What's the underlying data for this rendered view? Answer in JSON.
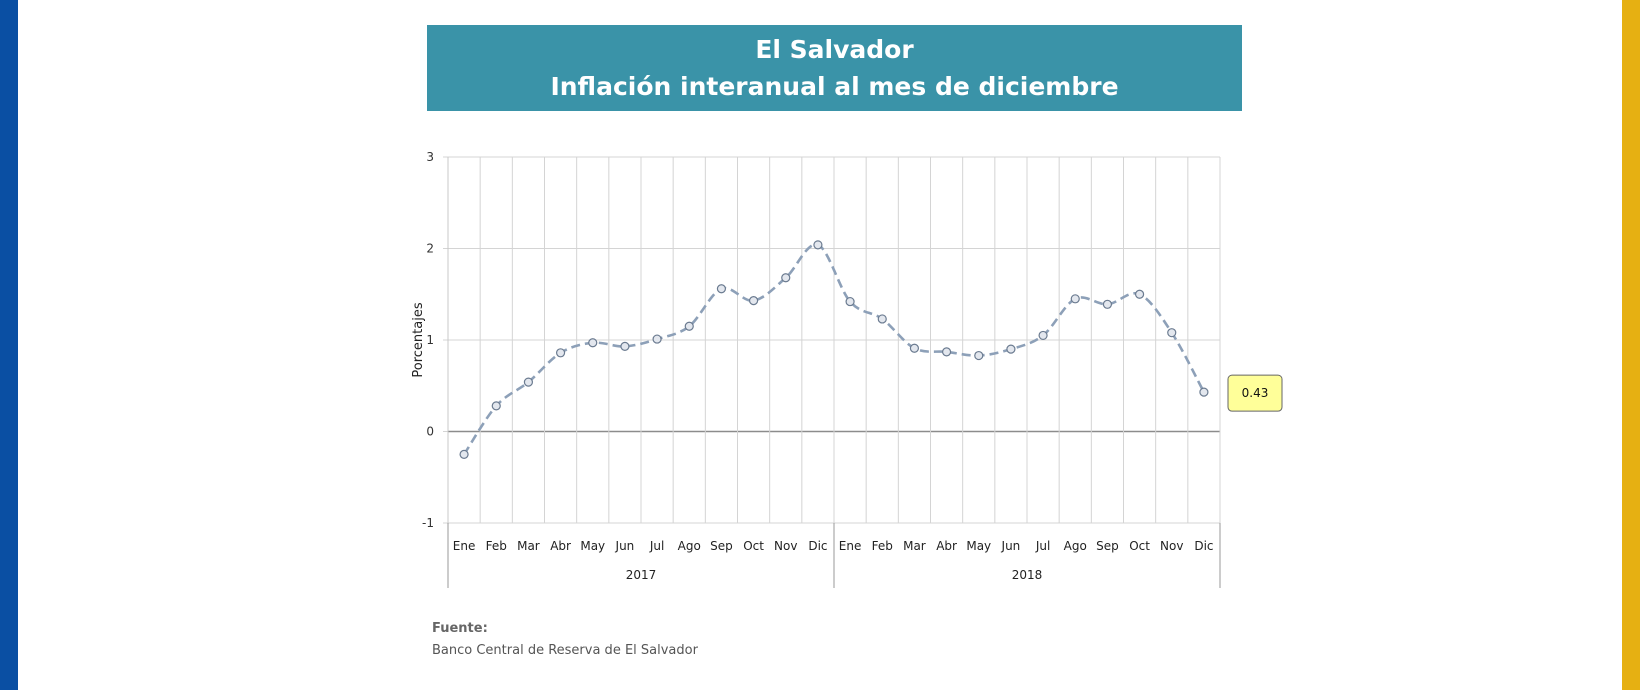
{
  "colors": {
    "left_stripe": "#0a4fa3",
    "right_stripe": "#e6b012",
    "banner": "#3a93a8",
    "series_line": "#8da0b8",
    "marker_fill": "#e3e7ee",
    "marker_stroke": "#6b7b90",
    "callout_fill": "#ffff99",
    "grid": "#d4d4d4",
    "zero_line": "#8c8c8c"
  },
  "banner": {
    "line1": "El Salvador",
    "line2": "Inflación interanual al mes de diciembre"
  },
  "source": {
    "heading": "Fuente:",
    "text": "Banco Central de Reserva de El Salvador"
  },
  "chart_data": {
    "type": "line",
    "ylabel": "Porcentajes",
    "ylim": [
      -1,
      3
    ],
    "yticks": [
      3,
      2,
      1,
      0,
      -1
    ],
    "grid": true,
    "categories": [
      "Ene",
      "Feb",
      "Mar",
      "Abr",
      "May",
      "Jun",
      "Jul",
      "Ago",
      "Sep",
      "Oct",
      "Nov",
      "Dic",
      "Ene",
      "Feb",
      "Mar",
      "Abr",
      "May",
      "Jun",
      "Jul",
      "Ago",
      "Sep",
      "Oct",
      "Nov",
      "Dic"
    ],
    "groups": [
      {
        "label": "2017",
        "count": 12
      },
      {
        "label": "2018",
        "count": 12
      }
    ],
    "series": [
      {
        "values": [
          -0.25,
          0.28,
          0.54,
          0.86,
          0.97,
          0.93,
          1.01,
          1.15,
          1.56,
          1.43,
          1.68,
          2.04,
          1.42,
          1.23,
          0.91,
          0.87,
          0.83,
          0.9,
          1.05,
          1.45,
          1.39,
          1.5,
          1.08,
          0.43
        ]
      }
    ],
    "callout": {
      "label": "0.43",
      "index": 23
    }
  }
}
